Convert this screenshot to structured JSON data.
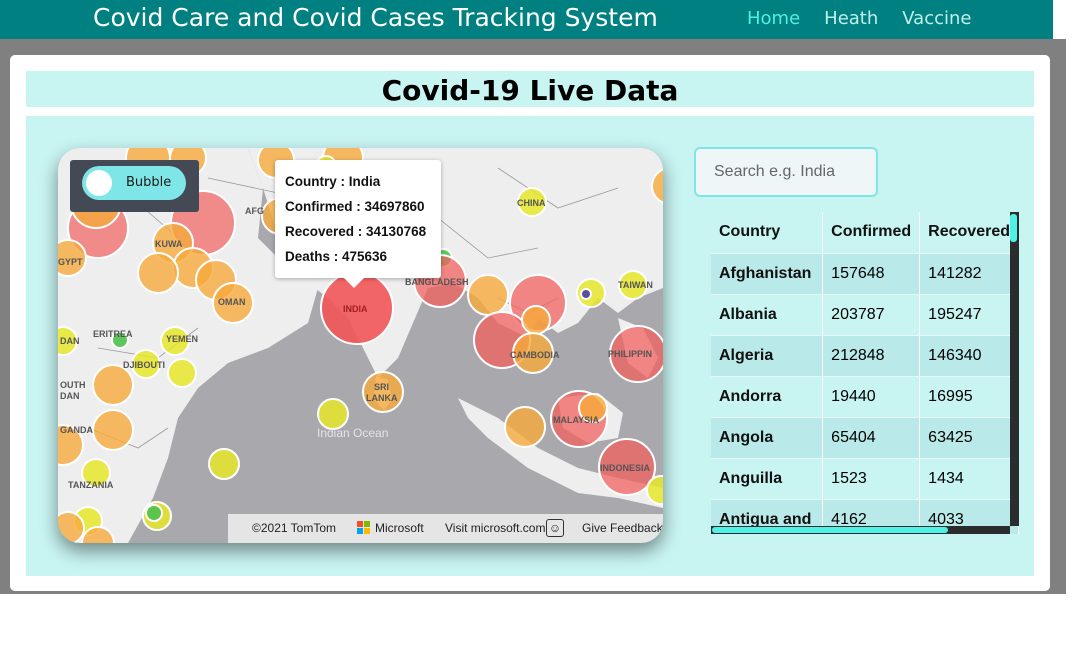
{
  "navbar": {
    "brand": "Covid Care and Covid Cases Tracking System",
    "links": [
      {
        "label": "Home",
        "active": true
      },
      {
        "label": "Heath",
        "active": false
      },
      {
        "label": "Vaccine",
        "active": false
      }
    ]
  },
  "page_title": "Covid-19 Live Data",
  "map": {
    "toggle_label": "Bubble",
    "popup": {
      "country": "Country : India",
      "confirmed": "Confirmed : 34697860",
      "recovered": "Recovered : 34130768",
      "deaths": "Deaths : 475636"
    },
    "labels": {
      "india": "INDIA",
      "china": "CHINA",
      "bangladesh": "BANGLADESH",
      "taiwan": "TAIWAN",
      "philippines": "PHILIPPIN",
      "cambodia": "CAMBODIA",
      "malaysia": "MALAYSIA",
      "indonesia": "INDONESIA",
      "sri_lanka_1": "SRI",
      "sri_lanka_2": "LANKA",
      "oman": "OMAN",
      "kuwait": "KUWA",
      "afghanistan": "AFG",
      "eritrea": "ERITREA",
      "djibouti": "DJIBOUTI",
      "yemen": "YEMEN",
      "egypt": "GYPT",
      "tanzania": "TANZANIA",
      "uganda": "GANDA",
      "south_sudan_1": "OUTH",
      "south_sudan_2": "DAN",
      "sudan": "DAN",
      "indian_ocean": "Indian Ocean"
    },
    "attribution": {
      "tomtom": "©2021 TomTom",
      "microsoft": "Microsoft",
      "visit": "Visit microsoft.com",
      "smiley": "☺",
      "feedback": "Give Feedback"
    },
    "colors": {
      "red": "#f2615f",
      "orange": "#f6a93b",
      "yellow": "#e6e62a",
      "green": "#4cc24c",
      "water": "#a9a8ad",
      "land": "#eeeeee"
    }
  },
  "search": {
    "placeholder": "Search e.g. India",
    "value": ""
  },
  "table": {
    "headers": [
      "Country",
      "Confirmed",
      "Recovered"
    ],
    "rows": [
      [
        "Afghanistan",
        "157648",
        "141282"
      ],
      [
        "Albania",
        "203787",
        "195247"
      ],
      [
        "Algeria",
        "212848",
        "146340"
      ],
      [
        "Andorra",
        "19440",
        "16995"
      ],
      [
        "Angola",
        "65404",
        "63425"
      ],
      [
        "Anguilla",
        "1523",
        "1434"
      ],
      [
        "Antigua and",
        "4162",
        "4033"
      ]
    ]
  }
}
